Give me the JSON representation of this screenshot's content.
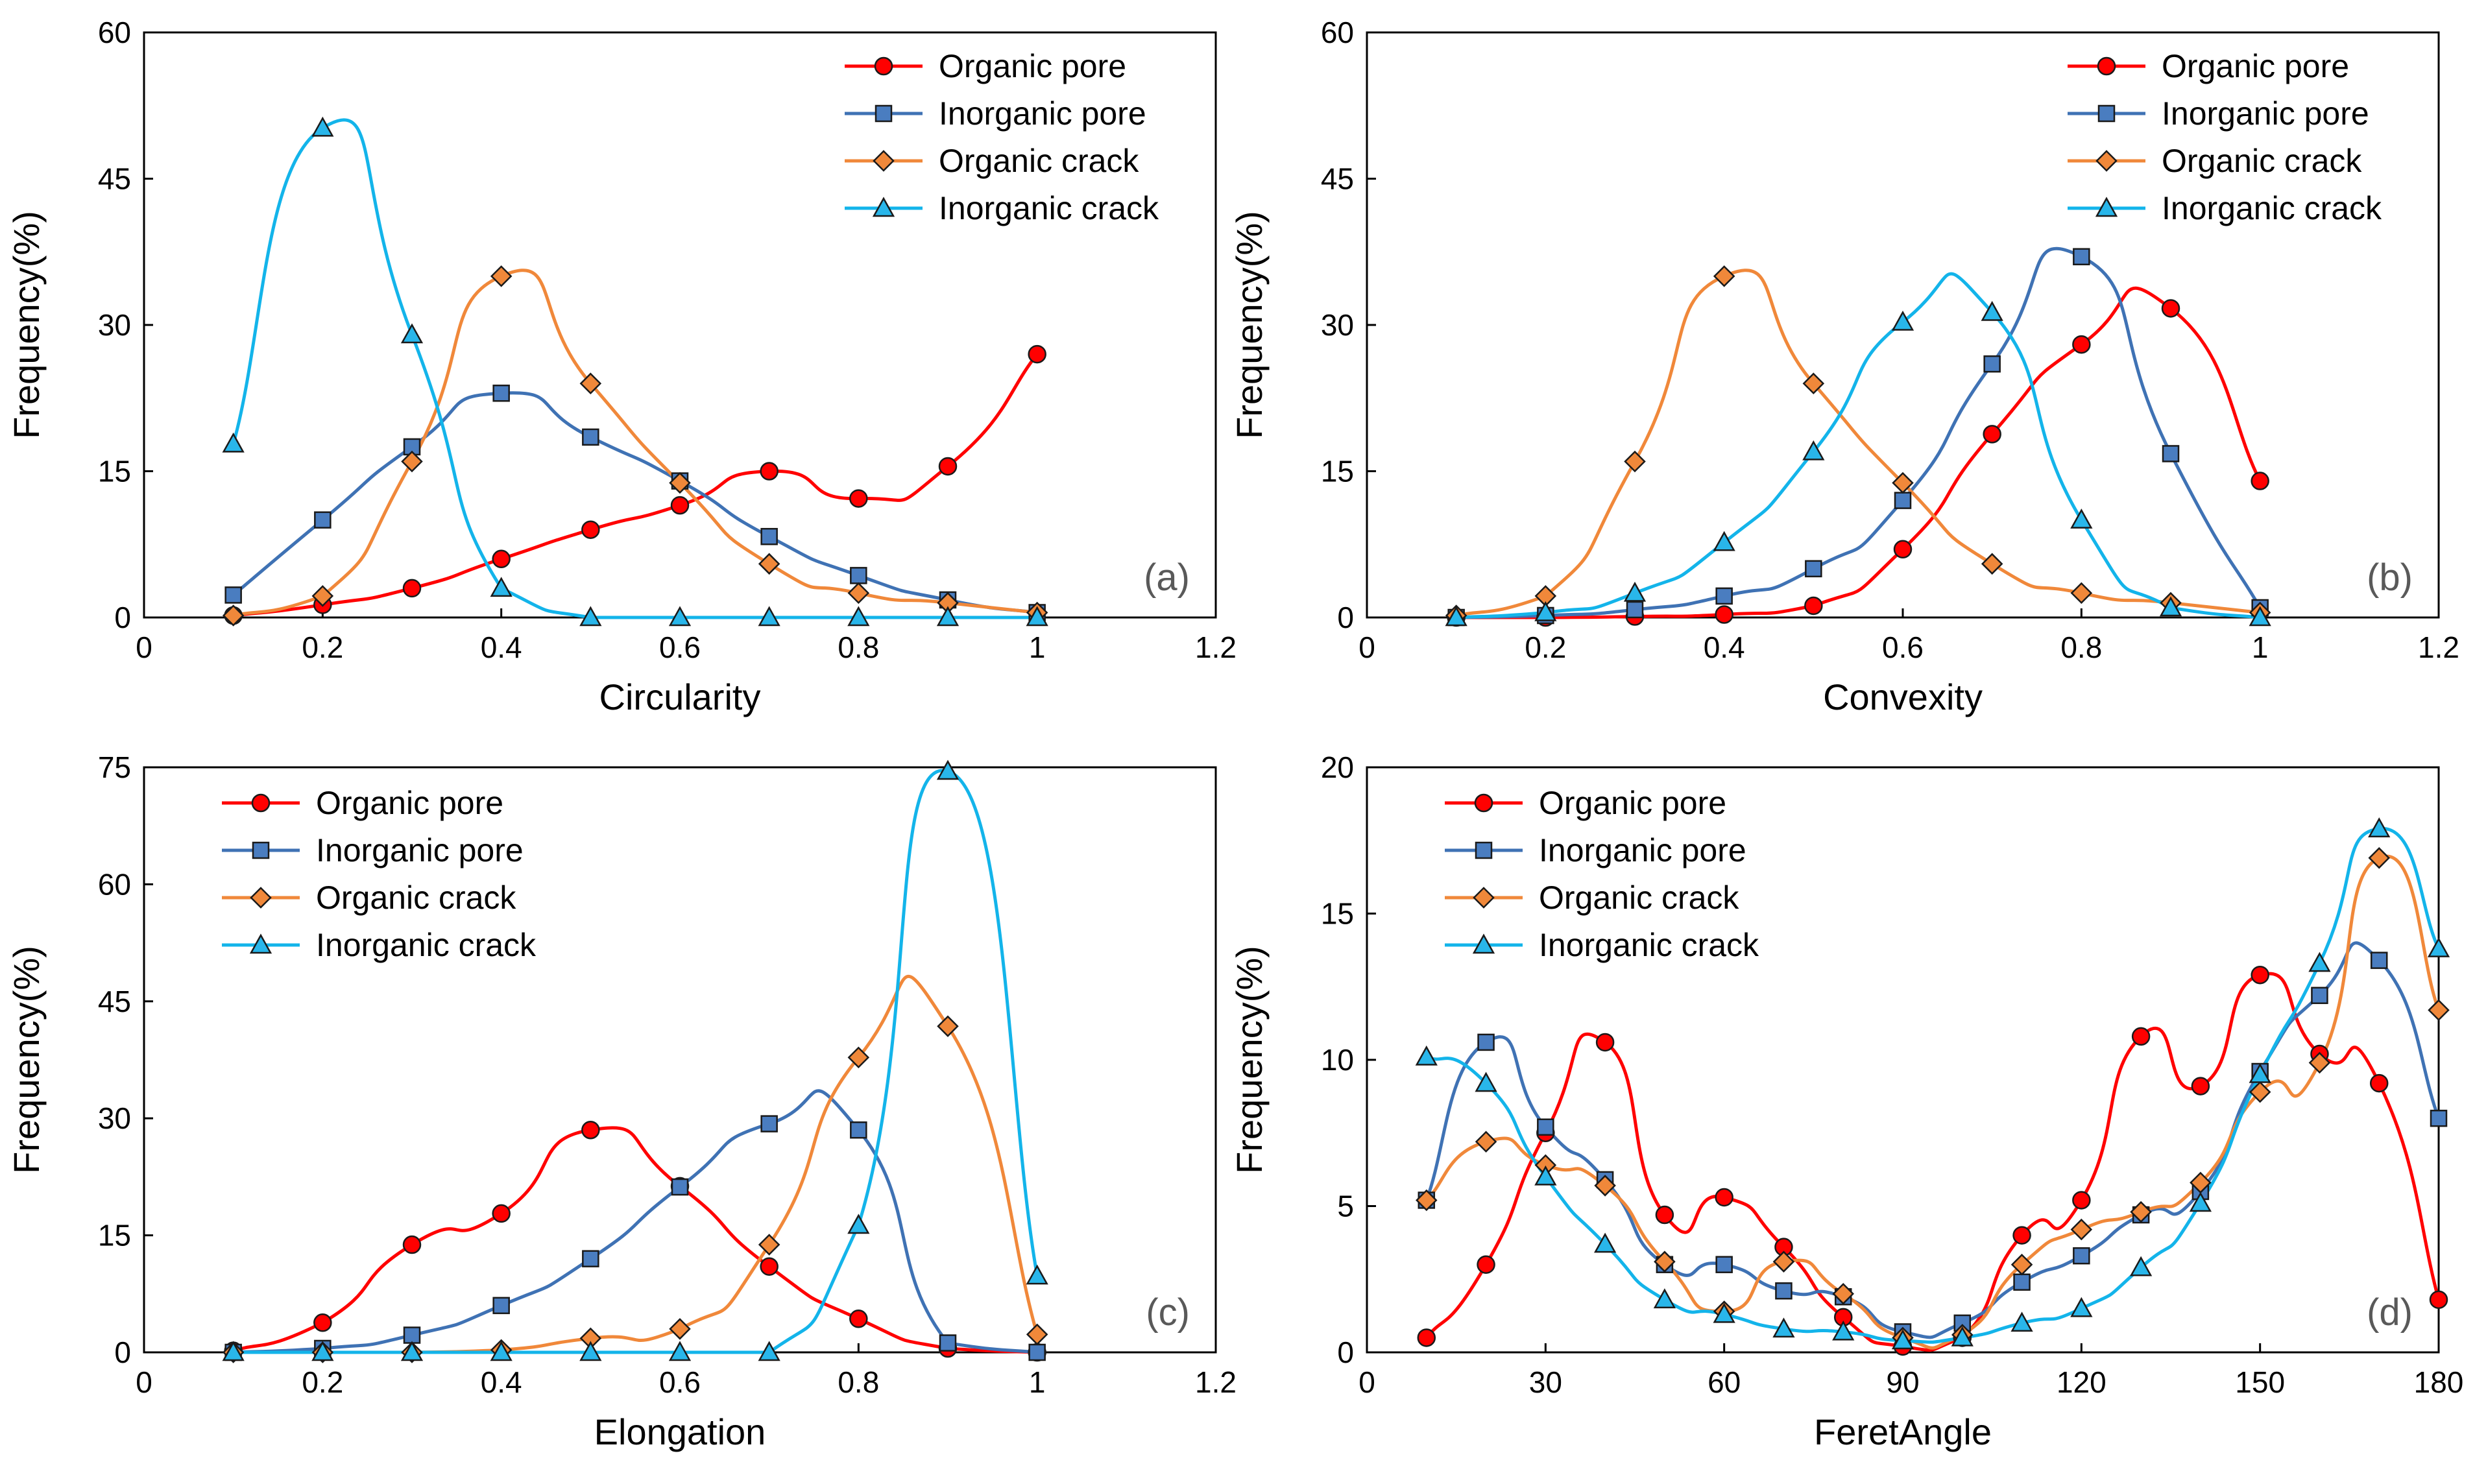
{
  "series_colors": {
    "Organic pore": "#ff0000",
    "Inorganic pore": "#3f72b4",
    "Organic crack": "#f0883a",
    "Inorganic crack": "#13b4ea"
  },
  "marker_fills": {
    "Organic pore": "#ff0000",
    "Inorganic pore": "#4a7dc0",
    "Organic crack": "#f0883a",
    "Inorganic crack": "#29b6ea"
  },
  "marker_shapes": {
    "Organic pore": "circle",
    "Inorganic pore": "square",
    "Organic crack": "diamond",
    "Inorganic crack": "triangle"
  },
  "chart_data": [
    {
      "type": "line",
      "panel_label": "(a)",
      "xlabel": "Circularity",
      "ylabel": "Frequency(%)",
      "xlim": [
        0,
        1.2
      ],
      "ylim": [
        0,
        60
      ],
      "xticks": [
        0,
        0.2,
        0.4,
        0.6,
        0.8,
        1,
        1.2
      ],
      "xtick_labels": [
        "0",
        "0.2",
        "0.4",
        "0.6",
        "0.8",
        "1",
        "1.2"
      ],
      "yticks": [
        0,
        15,
        30,
        45,
        60
      ],
      "ytick_labels": [
        "0",
        "15",
        "30",
        "45",
        "60"
      ],
      "legend_position": "top-right",
      "x": [
        0.1,
        0.2,
        0.3,
        0.4,
        0.5,
        0.6,
        0.7,
        0.8,
        0.9,
        1.0
      ],
      "series": [
        {
          "name": "Organic pore",
          "values": [
            0.2,
            1.3,
            3.0,
            6.0,
            9.0,
            11.5,
            15.0,
            12.2,
            15.5,
            27.0
          ]
        },
        {
          "name": "Inorganic pore",
          "values": [
            2.3,
            10.0,
            17.5,
            23.0,
            18.5,
            14.0,
            8.3,
            4.3,
            1.8,
            0.5
          ]
        },
        {
          "name": "Organic crack",
          "values": [
            0.2,
            2.2,
            16.0,
            35.0,
            24.0,
            13.8,
            5.5,
            2.5,
            1.5,
            0.5
          ]
        },
        {
          "name": "Inorganic crack",
          "values": [
            17.8,
            50.2,
            29.0,
            3.0,
            0.0,
            0.0,
            0.0,
            0.0,
            0.0,
            0.0
          ]
        }
      ]
    },
    {
      "type": "line",
      "panel_label": "(b)",
      "xlabel": "Convexity",
      "ylabel": "Frequency(%)",
      "xlim": [
        0,
        1.2
      ],
      "ylim": [
        0,
        60
      ],
      "xticks": [
        0,
        0.2,
        0.4,
        0.6,
        0.8,
        1,
        1.2
      ],
      "xtick_labels": [
        "0",
        "0.2",
        "0.4",
        "0.6",
        "0.8",
        "1",
        "1.2"
      ],
      "yticks": [
        0,
        15,
        30,
        45,
        60
      ],
      "ytick_labels": [
        "0",
        "15",
        "30",
        "45",
        "60"
      ],
      "legend_position": "top-right",
      "x": [
        0.1,
        0.2,
        0.3,
        0.4,
        0.5,
        0.6,
        0.7,
        0.8,
        0.9,
        1.0
      ],
      "series": [
        {
          "name": "Organic pore",
          "values": [
            0.0,
            0.0,
            0.1,
            0.3,
            1.2,
            7.0,
            18.8,
            28.0,
            31.7,
            14.0
          ]
        },
        {
          "name": "Inorganic pore",
          "values": [
            0.0,
            0.2,
            0.8,
            2.2,
            5.0,
            12.0,
            26.0,
            37.0,
            16.8,
            1.0
          ]
        },
        {
          "name": "Organic crack",
          "values": [
            0.2,
            2.2,
            16.0,
            35.0,
            24.0,
            13.8,
            5.5,
            2.5,
            1.5,
            0.5
          ]
        },
        {
          "name": "Inorganic crack",
          "values": [
            0.0,
            0.5,
            2.5,
            7.7,
            17.0,
            30.3,
            31.3,
            10.0,
            1.0,
            0.0
          ]
        }
      ]
    },
    {
      "type": "line",
      "panel_label": "(c)",
      "xlabel": "Elongation",
      "ylabel": "Frequency(%)",
      "xlim": [
        0,
        1.2
      ],
      "ylim": [
        0,
        75
      ],
      "xticks": [
        0,
        0.2,
        0.4,
        0.6,
        0.8,
        1,
        1.2
      ],
      "xtick_labels": [
        "0",
        "0.2",
        "0.4",
        "0.6",
        "0.8",
        "1",
        "1.2"
      ],
      "yticks": [
        0,
        15,
        30,
        45,
        60,
        75
      ],
      "ytick_labels": [
        "0",
        "15",
        "30",
        "45",
        "60",
        "75"
      ],
      "legend_position": "top-left",
      "x": [
        0.1,
        0.2,
        0.3,
        0.4,
        0.5,
        0.6,
        0.7,
        0.8,
        0.9,
        1.0
      ],
      "series": [
        {
          "name": "Organic pore",
          "values": [
            0.2,
            3.8,
            13.8,
            17.8,
            28.5,
            21.3,
            11.0,
            4.3,
            0.5,
            0.0
          ]
        },
        {
          "name": "Inorganic pore",
          "values": [
            0.0,
            0.5,
            2.2,
            6.0,
            12.0,
            21.2,
            29.3,
            28.5,
            1.2,
            0.0
          ]
        },
        {
          "name": "Organic crack",
          "values": [
            0.0,
            0.0,
            0.0,
            0.3,
            1.8,
            3.0,
            13.8,
            37.8,
            41.8,
            2.3
          ]
        },
        {
          "name": "Inorganic crack",
          "values": [
            0.0,
            0.0,
            0.0,
            0.0,
            0.0,
            0.0,
            0.0,
            16.3,
            74.5,
            9.8
          ]
        }
      ]
    },
    {
      "type": "line",
      "panel_label": "(d)",
      "xlabel": "FeretAngle",
      "ylabel": "Frequency(%)",
      "xlim": [
        0,
        180
      ],
      "ylim": [
        0,
        20
      ],
      "xticks": [
        0,
        30,
        60,
        90,
        120,
        150,
        180
      ],
      "xtick_labels": [
        "0",
        "30",
        "60",
        "90",
        "120",
        "150",
        "180"
      ],
      "yticks": [
        0,
        5,
        10,
        15,
        20
      ],
      "ytick_labels": [
        "0",
        "5",
        "10",
        "15",
        "20"
      ],
      "legend_position": "top-left",
      "x": [
        10,
        20,
        30,
        40,
        50,
        60,
        70,
        80,
        90,
        100,
        110,
        120,
        130,
        140,
        150,
        160,
        170,
        180
      ],
      "series": [
        {
          "name": "Organic pore",
          "values": [
            0.5,
            3.0,
            7.5,
            10.6,
            4.7,
            5.3,
            3.6,
            1.2,
            0.2,
            0.5,
            4.0,
            5.2,
            10.8,
            9.1,
            12.9,
            10.2,
            9.2,
            1.8
          ]
        },
        {
          "name": "Inorganic pore",
          "values": [
            5.2,
            10.6,
            7.7,
            5.9,
            3.0,
            3.0,
            2.1,
            1.9,
            0.7,
            1.0,
            2.4,
            3.3,
            4.7,
            5.5,
            9.6,
            12.2,
            13.4,
            8.0
          ]
        },
        {
          "name": "Organic crack",
          "values": [
            5.2,
            7.2,
            6.4,
            5.7,
            3.1,
            1.4,
            3.1,
            2.0,
            0.5,
            0.6,
            3.0,
            4.2,
            4.8,
            5.8,
            8.9,
            9.9,
            16.9,
            11.7
          ]
        },
        {
          "name": "Inorganic crack",
          "values": [
            10.1,
            9.2,
            6.0,
            3.7,
            1.8,
            1.3,
            0.8,
            0.7,
            0.4,
            0.5,
            1.0,
            1.5,
            2.9,
            5.1,
            9.5,
            13.3,
            17.9,
            13.8
          ]
        }
      ]
    }
  ]
}
